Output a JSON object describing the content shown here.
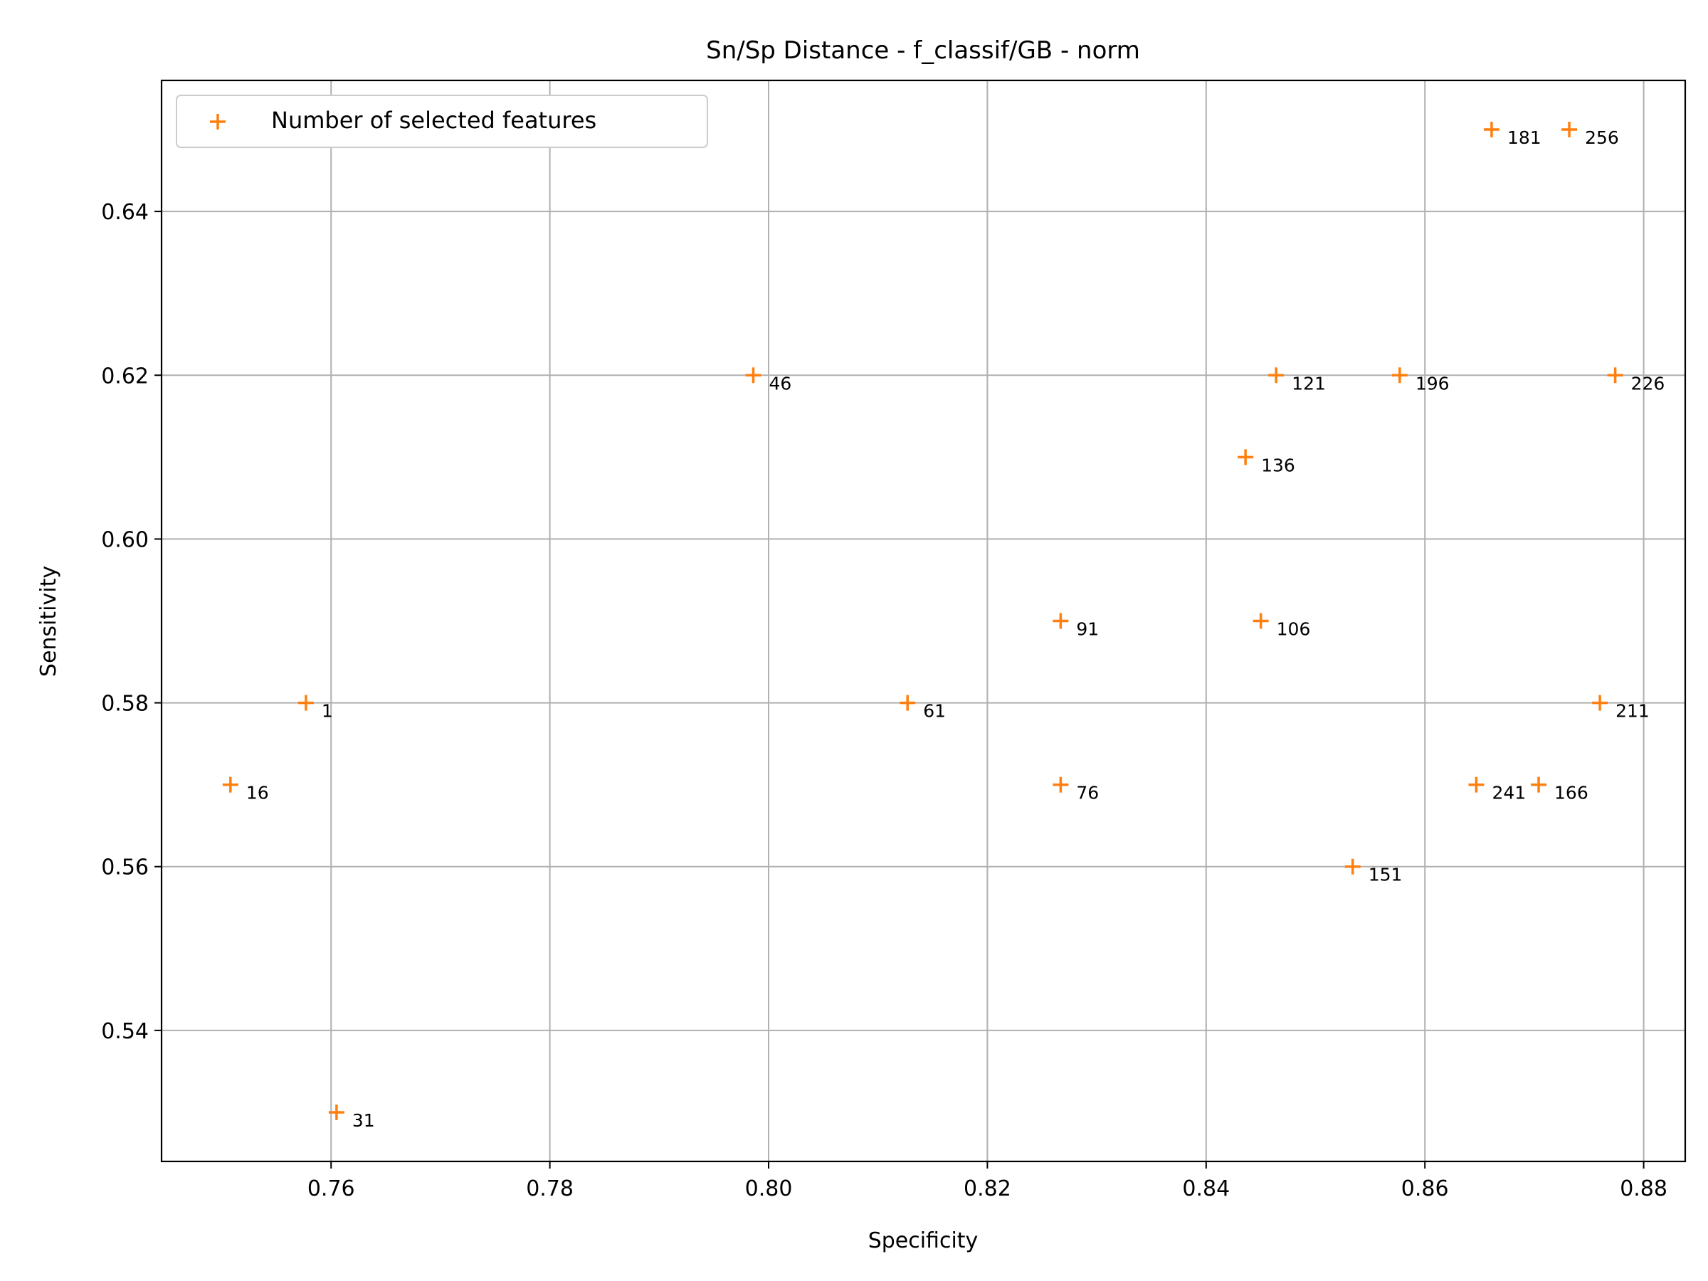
{
  "chart_data": {
    "type": "scatter",
    "title": "Sn/Sp Distance - f_classif/GB - norm",
    "xlabel": "Specificity",
    "ylabel": "Sensitivity",
    "xlim": [
      0.7445,
      0.8838
    ],
    "ylim": [
      0.524,
      0.656
    ],
    "xticks": [
      0.76,
      0.78,
      0.8,
      0.82,
      0.84,
      0.86,
      0.88
    ],
    "xtick_labels": [
      "0.76",
      "0.78",
      "0.80",
      "0.82",
      "0.84",
      "0.86",
      "0.88"
    ],
    "yticks": [
      0.54,
      0.56,
      0.58,
      0.6,
      0.62,
      0.64
    ],
    "ytick_labels": [
      "0.54",
      "0.56",
      "0.58",
      "0.60",
      "0.62",
      "0.64"
    ],
    "grid": true,
    "legend": {
      "placement": "top-left",
      "entries": [
        "Number of selected features"
      ]
    },
    "marker_color": "#ff7f0e",
    "series": [
      {
        "name": "Number of selected features",
        "points": [
          {
            "x": 0.7577,
            "y": 0.58,
            "label": "1"
          },
          {
            "x": 0.7508,
            "y": 0.57,
            "label": "16"
          },
          {
            "x": 0.7605,
            "y": 0.53,
            "label": "31"
          },
          {
            "x": 0.7986,
            "y": 0.62,
            "label": "46"
          },
          {
            "x": 0.8127,
            "y": 0.58,
            "label": "61"
          },
          {
            "x": 0.8267,
            "y": 0.57,
            "label": "76"
          },
          {
            "x": 0.8267,
            "y": 0.59,
            "label": "91"
          },
          {
            "x": 0.845,
            "y": 0.59,
            "label": "106"
          },
          {
            "x": 0.8464,
            "y": 0.62,
            "label": "121"
          },
          {
            "x": 0.8436,
            "y": 0.61,
            "label": "136"
          },
          {
            "x": 0.8534,
            "y": 0.56,
            "label": "151"
          },
          {
            "x": 0.8704,
            "y": 0.57,
            "label": "166"
          },
          {
            "x": 0.8661,
            "y": 0.65,
            "label": "181"
          },
          {
            "x": 0.8577,
            "y": 0.62,
            "label": "196"
          },
          {
            "x": 0.876,
            "y": 0.58,
            "label": "211"
          },
          {
            "x": 0.8774,
            "y": 0.62,
            "label": "226"
          },
          {
            "x": 0.8647,
            "y": 0.57,
            "label": "241"
          },
          {
            "x": 0.8732,
            "y": 0.65,
            "label": "256"
          }
        ]
      }
    ]
  }
}
